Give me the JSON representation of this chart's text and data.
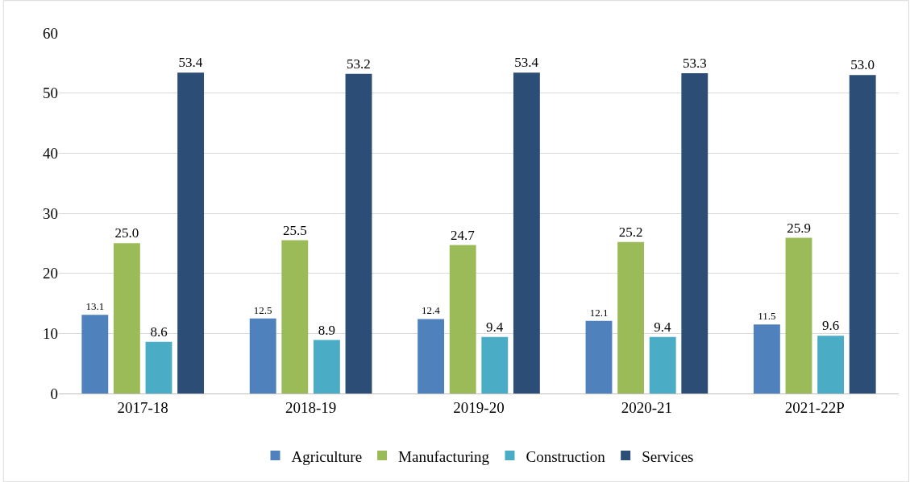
{
  "chart_data": {
    "type": "bar",
    "categories": [
      "2017-18",
      "2018-19",
      "2019-20",
      "2020-21",
      "2021-22P"
    ],
    "series": [
      {
        "name": "Agriculture",
        "color": "#4f81bd",
        "values": [
          13.1,
          12.5,
          12.4,
          12.1,
          11.5
        ],
        "value_labels": [
          "13.1",
          "12.5",
          "12.4",
          "12.1",
          "11.5"
        ]
      },
      {
        "name": "Manufacturing",
        "color": "#9bbb59",
        "values": [
          25.0,
          25.5,
          24.7,
          25.2,
          25.9
        ],
        "value_labels": [
          "25.0",
          "25.5",
          "24.7",
          "25.2",
          "25.9"
        ]
      },
      {
        "name": "Construction",
        "color": "#4bacc6",
        "values": [
          8.6,
          8.9,
          9.4,
          9.4,
          9.6
        ],
        "value_labels": [
          "8.6",
          "8.9",
          "9.4",
          "9.4",
          "9.6"
        ]
      },
      {
        "name": "Services",
        "color": "#2c4d75",
        "values": [
          53.4,
          53.2,
          53.4,
          53.3,
          53.0
        ],
        "value_labels": [
          "53.4",
          "53.2",
          "53.4",
          "53.3",
          "53.0"
        ]
      }
    ],
    "ylim": [
      0,
      60
    ],
    "yticks": [
      0,
      10,
      20,
      30,
      40,
      50,
      60
    ],
    "grid": "y",
    "legend": "bottom"
  }
}
